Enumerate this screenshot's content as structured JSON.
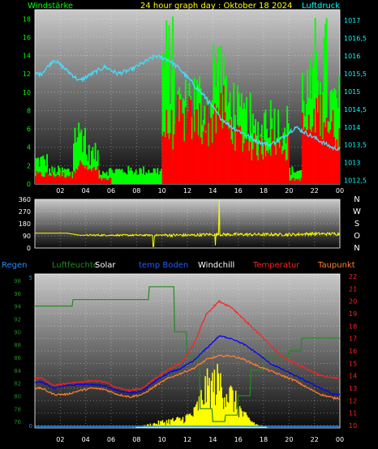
{
  "header": {
    "left_label": "Windstärke",
    "center_title": "24 hour graph day : Oktober 18 2024",
    "right_label": "Luftdruck"
  },
  "colors": {
    "wind_axis": "#00ff00",
    "pressure_axis": "#00ffff",
    "title": "#ffff00",
    "gust": "#00ff00",
    "wind": "#ff0000",
    "pressure": "#40e0ff",
    "direction": "#ffff00",
    "rain": "#1e90ff",
    "humidity": "#228b22",
    "solar": "#ffff00",
    "temp_ground": "#0000ff",
    "windchill": "#ffffff",
    "temperature": "#ff2020",
    "dewpoint": "#ff8030"
  },
  "chart_data": [
    {
      "type": "bar",
      "name": "wind",
      "x_ticks": [
        "02",
        "04",
        "06",
        "08",
        "10",
        "12",
        "14",
        "16",
        "18",
        "20",
        "22",
        "00"
      ],
      "y_left_ticks": [
        "0",
        "2",
        "4",
        "6",
        "8",
        "10",
        "12",
        "14",
        "16",
        "18"
      ],
      "y_left_range": [
        0,
        19
      ],
      "y_right_ticks": [
        "1012,5",
        "1013",
        "1013,5",
        "1014",
        "1014,5",
        "1015",
        "1015,5",
        "1016",
        "1016,5",
        "1017"
      ],
      "y_right_range": [
        1012.4,
        1017.3
      ],
      "gust_hourly_max": [
        3.5,
        2,
        2,
        7.5,
        4.5,
        2,
        2,
        2,
        2,
        2,
        18.5,
        12,
        13,
        12,
        17,
        12,
        10,
        8,
        10,
        9,
        2,
        14,
        18.5,
        12
      ],
      "wind_hourly_avg": [
        1,
        1,
        1,
        2,
        1.5,
        0.5,
        0,
        0,
        0,
        0,
        6,
        7,
        7,
        6.5,
        8,
        6,
        5,
        4,
        4.5,
        4,
        0.5,
        6,
        8,
        6
      ],
      "pressure_hourly": [
        1015.5,
        1015.9,
        1015.6,
        1015.3,
        1015.5,
        1015.7,
        1015.5,
        1015.6,
        1015.8,
        1016.0,
        1015.9,
        1015.6,
        1015.2,
        1014.8,
        1014.3,
        1014.0,
        1013.8,
        1013.6,
        1013.5,
        1013.7,
        1014.0,
        1013.8,
        1013.6,
        1013.4
      ]
    },
    {
      "type": "line",
      "name": "wind_direction",
      "y_left_ticks": [
        "0",
        "90",
        "180",
        "270",
        "360"
      ],
      "y_left_range": [
        0,
        360
      ],
      "y_right_labels": [
        "N",
        "W",
        "S",
        "O",
        "N"
      ],
      "direction_hourly": [
        110,
        110,
        110,
        95,
        95,
        95,
        95,
        95,
        95,
        95,
        95,
        95,
        95,
        100,
        100,
        100,
        100,
        100,
        100,
        100,
        100,
        105,
        105,
        105
      ]
    },
    {
      "type": "line",
      "name": "climate",
      "legend": [
        "Regen",
        "Luftfeuchte",
        "Solar",
        "temp Boden",
        "Windchill",
        "Temperatur",
        "Taupunkt"
      ],
      "x_ticks": [
        "02",
        "04",
        "06",
        "08",
        "10",
        "12",
        "14",
        "16",
        "18",
        "20",
        "22",
        "00"
      ],
      "y_left_ticks": [
        "76",
        "78",
        "80",
        "82",
        "84",
        "86",
        "88",
        "90",
        "92",
        "94",
        "96",
        "98"
      ],
      "y_left_range": [
        75,
        99
      ],
      "y_rain_ticks": [
        "0",
        "5"
      ],
      "y_right_ticks": [
        "10",
        "11",
        "12",
        "13",
        "14",
        "15",
        "16",
        "17",
        "18",
        "19",
        "20",
        "21",
        "22"
      ],
      "y_right_range": [
        9.8,
        22.2
      ],
      "humidity_hourly": [
        94,
        94,
        94,
        95,
        95,
        95,
        95,
        95,
        95,
        97,
        97,
        90,
        86,
        78,
        76,
        77,
        80,
        84,
        86,
        86,
        87,
        89,
        89,
        89
      ],
      "temperature_hourly": [
        13.8,
        13.2,
        13.4,
        13.5,
        13.6,
        13.5,
        13.0,
        12.8,
        13.0,
        13.8,
        14.5,
        15.0,
        16.5,
        19.0,
        20.0,
        19.5,
        18.5,
        17.5,
        16.5,
        15.5,
        15.0,
        14.5,
        14.0,
        13.8
      ],
      "temp_ground_hourly": [
        13.5,
        13.0,
        13.2,
        13.3,
        13.3,
        13.2,
        12.8,
        12.6,
        12.8,
        13.6,
        14.2,
        14.6,
        15.2,
        16.2,
        17.2,
        17.0,
        16.5,
        15.8,
        15.0,
        14.5,
        14.0,
        13.5,
        13.0,
        12.5
      ],
      "dewpoint_hourly": [
        13.0,
        12.5,
        12.5,
        12.8,
        13.0,
        12.9,
        12.5,
        12.3,
        12.5,
        13.2,
        13.8,
        14.2,
        14.6,
        15.3,
        15.6,
        15.6,
        15.3,
        14.8,
        14.4,
        14.0,
        13.6,
        13.0,
        12.5,
        12.2
      ],
      "solar_hourly": [
        0,
        0,
        0,
        0,
        0,
        0,
        0,
        0,
        0.03,
        0.08,
        0.12,
        0.15,
        0.25,
        0.7,
        0.8,
        0.55,
        0.2,
        0.05,
        0,
        0,
        0,
        0,
        0,
        0
      ],
      "rain_hourly": [
        0,
        0,
        0,
        0,
        0,
        0,
        0,
        0,
        0,
        0,
        0,
        0,
        0,
        0,
        0,
        0,
        0,
        0,
        0,
        0,
        0,
        0,
        0,
        0
      ]
    }
  ]
}
